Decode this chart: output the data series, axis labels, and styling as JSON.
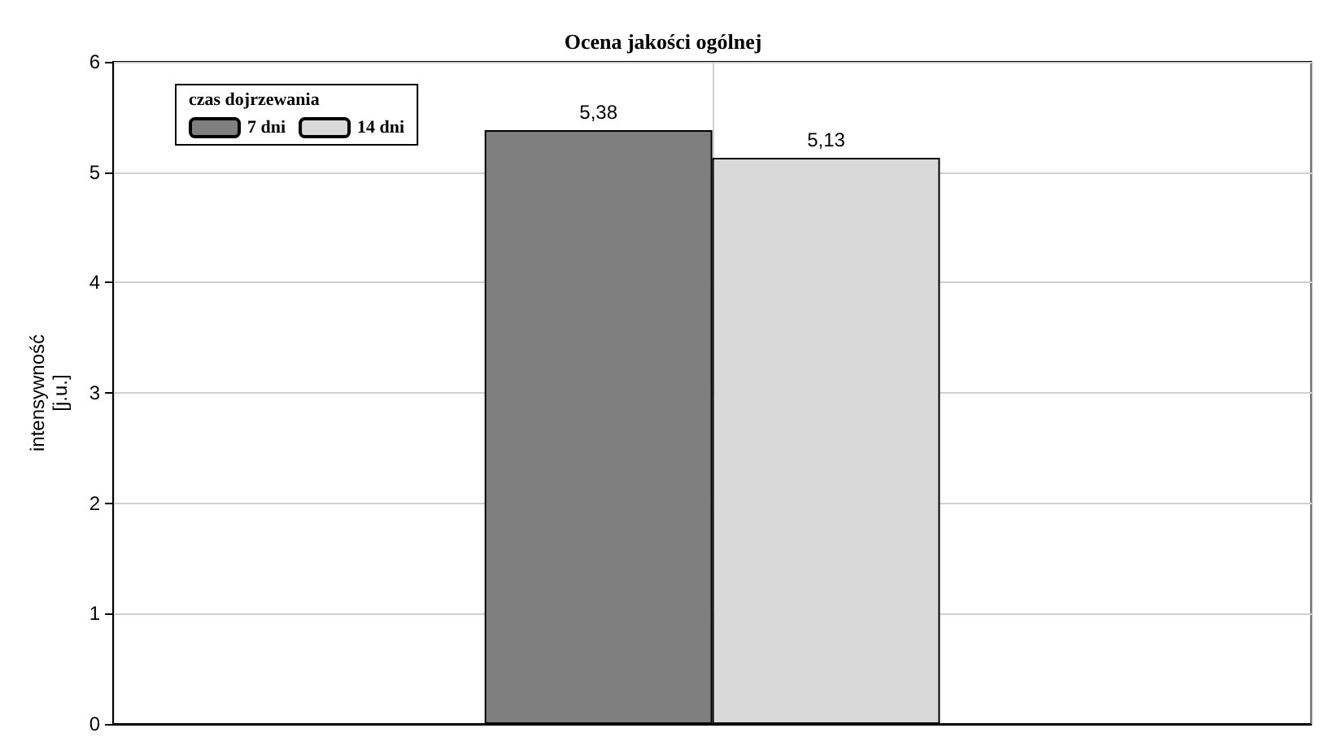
{
  "chart_data": {
    "type": "bar",
    "title": "Ocena jakości ogólnej",
    "ylabel": "intensywność\n[j.u.]",
    "legend_title": "czas dojrzewania",
    "categories": [
      null
    ],
    "series": [
      {
        "name": "7 dni",
        "color": "#7f7f7f",
        "values": [
          5.38
        ],
        "value_labels": [
          "5,38"
        ]
      },
      {
        "name": "14 dni",
        "color": "#d9d9d9",
        "values": [
          5.13
        ],
        "value_labels": [
          "5,13"
        ]
      }
    ],
    "ylim": [
      0,
      6
    ],
    "yticks": [
      0,
      1,
      2,
      3,
      4,
      5,
      6
    ],
    "grid": true,
    "legend": "top left"
  }
}
